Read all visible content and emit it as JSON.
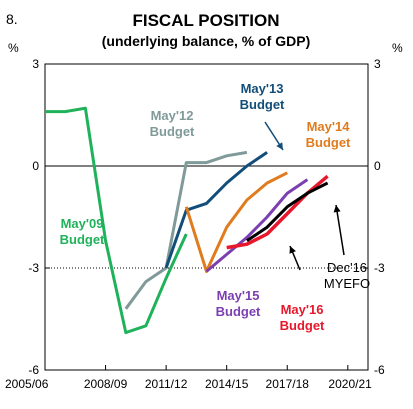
{
  "figure_number": "8.",
  "chart_data": {
    "type": "line",
    "title": "FISCAL POSITION",
    "subtitle": "(underlying balance, % of GDP)",
    "xlabel": "",
    "ylabel": "",
    "y_unit_left": "%",
    "y_unit_right": "%",
    "ylim": [
      -6,
      3
    ],
    "yticks": [
      3,
      0,
      -3,
      -6
    ],
    "ytick_labels": [
      "3",
      "0",
      "-3",
      "-6"
    ],
    "xlim": [
      2005,
      2021
    ],
    "xtick_positions": [
      2005,
      2008,
      2011,
      2014,
      2017,
      2020
    ],
    "xtick_labels": [
      "2005/06",
      "2008/09",
      "2011/12",
      "2014/15",
      "2017/18",
      "2020/21"
    ],
    "reference_line": {
      "y": -3,
      "style": "dotted"
    },
    "grid": false,
    "series": [
      {
        "label_lines": [
          "May'09",
          "Budget"
        ],
        "color": "#1fb25a",
        "x": [
          2005,
          2006,
          2007,
          2008,
          2009,
          2010,
          2011,
          2012
        ],
        "y": [
          1.6,
          1.6,
          1.7,
          -2.2,
          -4.9,
          -4.7,
          -3.3,
          -2.0
        ]
      },
      {
        "label_lines": [
          "May'12",
          "Budget"
        ],
        "color": "#7f9a98",
        "x": [
          2009,
          2010,
          2011,
          2012,
          2013,
          2014,
          2015
        ],
        "y": [
          -4.2,
          -3.4,
          -3.0,
          0.1,
          0.1,
          0.3,
          0.4
        ]
      },
      {
        "label_lines": [
          "May'13",
          "Budget"
        ],
        "color": "#124e79",
        "x": [
          2011,
          2012,
          2013,
          2014,
          2015,
          2016
        ],
        "y": [
          -3.0,
          -1.3,
          -1.1,
          -0.5,
          0.0,
          0.4
        ]
      },
      {
        "label_lines": [
          "May'14",
          "Budget"
        ],
        "color": "#e07b1e",
        "x": [
          2012,
          2013,
          2014,
          2015,
          2016,
          2017
        ],
        "y": [
          -1.2,
          -3.1,
          -1.8,
          -1.0,
          -0.5,
          -0.2
        ]
      },
      {
        "label_lines": [
          "May'15",
          "Budget"
        ],
        "color": "#7b3fb2",
        "x": [
          2013,
          2014,
          2015,
          2016,
          2017,
          2018
        ],
        "y": [
          -3.1,
          -2.6,
          -2.1,
          -1.5,
          -0.8,
          -0.4
        ]
      },
      {
        "label_lines": [
          "May'16",
          "Budget"
        ],
        "color": "#e8172b",
        "x": [
          2014,
          2015,
          2016,
          2017,
          2018,
          2019
        ],
        "y": [
          -2.4,
          -2.3,
          -2.0,
          -1.4,
          -0.8,
          -0.3
        ]
      },
      {
        "label_lines": [
          "Dec'16",
          "MYEFO"
        ],
        "color": "#000000",
        "x": [
          2015,
          2016,
          2017,
          2018,
          2019
        ],
        "y": [
          -2.2,
          -1.8,
          -1.2,
          -0.8,
          -0.5
        ]
      }
    ]
  }
}
